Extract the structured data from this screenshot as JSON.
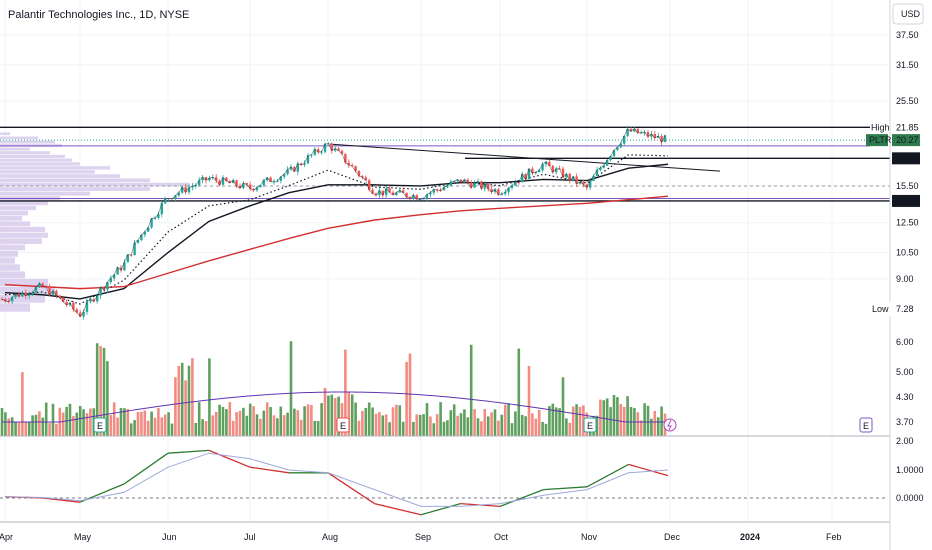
{
  "header": {
    "title": "Palantir Technologies Inc., 1D, NYSE",
    "currency": "USD"
  },
  "chart_data": {
    "type": "candlestick",
    "title": "Palantir Technologies Inc., 1D, NYSE",
    "ticker": "PLTR",
    "currency": "USD",
    "price_axis": {
      "ticks": [
        "37.50",
        "31.50",
        "25.50",
        "21.85",
        "20.27",
        "18.22",
        "15.50",
        "14.20",
        "12.50",
        "10.50",
        "9.00",
        "7.28"
      ],
      "scale": "log",
      "range": [
        7.0,
        42.0
      ]
    },
    "time_axis": {
      "ticks": [
        "Apr",
        "May",
        "Jun",
        "Jul",
        "Aug",
        "Sep",
        "Oct",
        "Nov",
        "Dec",
        "2024",
        "Feb"
      ]
    },
    "annotations": {
      "high": {
        "label": "High",
        "value": 21.85
      },
      "low": {
        "label": "Low",
        "value": 7.28
      },
      "last": {
        "label": "PLTR",
        "value": 20.27
      },
      "levels": [
        18.22,
        14.2
      ]
    },
    "price_series": {
      "dates": [
        "Apr",
        "Apr 15",
        "May",
        "May 15",
        "Jun",
        "Jun 15",
        "Jul",
        "Jul 15",
        "Aug",
        "Aug 15",
        "Sep",
        "Sep 15",
        "Oct",
        "Oct 15",
        "Nov",
        "Nov 15",
        "Nov 28"
      ],
      "close": [
        8.0,
        8.6,
        7.3,
        9.8,
        14.5,
        16.2,
        15.3,
        16.8,
        19.8,
        15.0,
        14.6,
        16.0,
        15.0,
        17.6,
        15.3,
        21.4,
        20.27
      ]
    },
    "moving_averages": [
      {
        "color": "#131722",
        "values": [
          8.3,
          8.2,
          8.0,
          8.5,
          10.5,
          12.6,
          13.8,
          14.9,
          15.6,
          15.6,
          15.5,
          15.8,
          15.8,
          16.1,
          16.0,
          17.2,
          17.6
        ]
      },
      {
        "color": "#d32f2f",
        "values": [
          8.7,
          8.6,
          8.5,
          8.6,
          9.3,
          10.0,
          10.7,
          11.4,
          12.1,
          12.7,
          13.1,
          13.4,
          13.6,
          13.8,
          14.0,
          14.3,
          14.6
        ]
      }
    ],
    "volume_axis": {
      "ticks": [
        "6.00",
        "5.00",
        "4.30",
        "3.70"
      ]
    },
    "oscillator_axis": {
      "ticks": [
        "2.00",
        "1.0000",
        "0.0000"
      ]
    },
    "oscillator": {
      "values": [
        0.05,
        0.0,
        -0.15,
        0.5,
        1.6,
        1.7,
        1.1,
        0.9,
        0.9,
        -0.2,
        -0.6,
        -0.2,
        -0.3,
        0.3,
        0.4,
        1.2,
        0.8
      ],
      "signal": [
        0.05,
        0.02,
        -0.1,
        0.2,
        1.1,
        1.6,
        1.4,
        1.0,
        0.9,
        0.3,
        -0.3,
        -0.3,
        -0.2,
        0.1,
        0.3,
        0.9,
        1.0
      ]
    },
    "colors": {
      "up": "#26a69a",
      "down": "#ef5350",
      "vol_up": "#5fa05f",
      "vol_down": "#f28b82",
      "ma_black": "#131722",
      "ma_red": "#d32f2f",
      "profile": "#d1c4e9",
      "high_tag": "#2f7d4f",
      "dark_tag": "#131722"
    },
    "events": {
      "earnings_label": "E"
    }
  }
}
